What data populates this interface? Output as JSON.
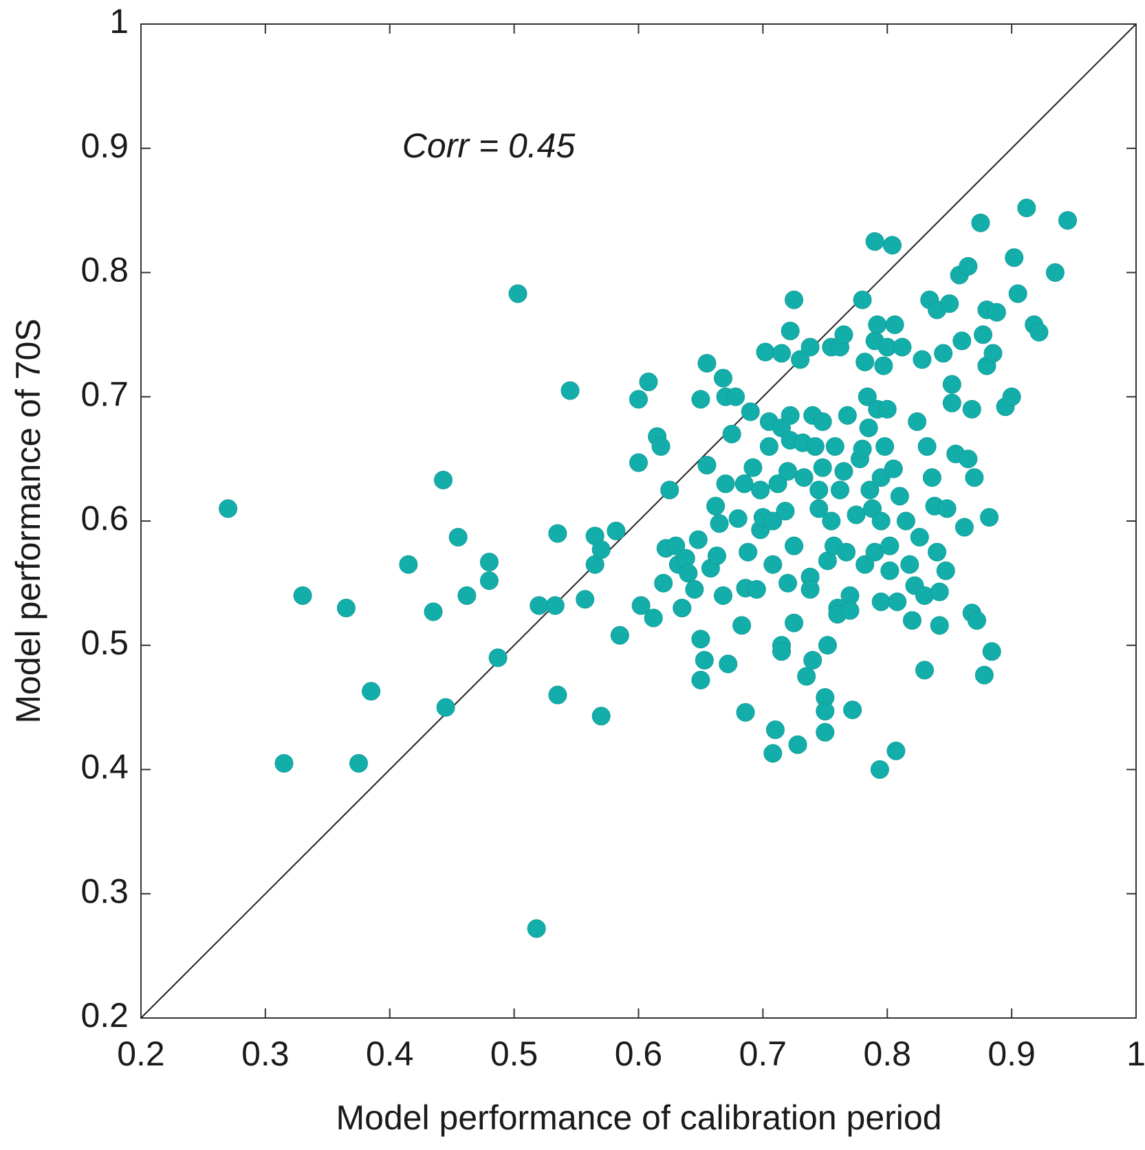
{
  "chart_data": {
    "type": "scatter",
    "xlabel": "Model performance of calibration period",
    "ylabel": "Model performance of 70S",
    "annotation": "Corr = 0.45",
    "color": "#14aeaa",
    "xlim": [
      0.2,
      1
    ],
    "ylim": [
      0.2,
      1
    ],
    "xticks": [
      0.2,
      0.3,
      0.4,
      0.5,
      0.6,
      0.7,
      0.8,
      0.9,
      1
    ],
    "yticks": [
      0.2,
      0.3,
      0.4,
      0.5,
      0.6,
      0.7,
      0.8,
      0.9,
      1
    ],
    "x": [
      0.27,
      0.315,
      0.33,
      0.365,
      0.375,
      0.385,
      0.415,
      0.435,
      0.443,
      0.445,
      0.455,
      0.462,
      0.48,
      0.48,
      0.487,
      0.503,
      0.518,
      0.52,
      0.533,
      0.535,
      0.535,
      0.545,
      0.557,
      0.565,
      0.565,
      0.57,
      0.57,
      0.582,
      0.585,
      0.6,
      0.6,
      0.602,
      0.608,
      0.612,
      0.615,
      0.618,
      0.62,
      0.622,
      0.625,
      0.63,
      0.632,
      0.635,
      0.638,
      0.64,
      0.645,
      0.648,
      0.65,
      0.65,
      0.65,
      0.653,
      0.655,
      0.655,
      0.658,
      0.662,
      0.663,
      0.665,
      0.668,
      0.668,
      0.67,
      0.67,
      0.672,
      0.675,
      0.678,
      0.68,
      0.683,
      0.685,
      0.686,
      0.686,
      0.688,
      0.69,
      0.692,
      0.695,
      0.698,
      0.698,
      0.7,
      0.702,
      0.705,
      0.705,
      0.708,
      0.708,
      0.708,
      0.71,
      0.712,
      0.715,
      0.715,
      0.715,
      0.715,
      0.718,
      0.72,
      0.72,
      0.722,
      0.722,
      0.722,
      0.725,
      0.725,
      0.725,
      0.728,
      0.73,
      0.732,
      0.733,
      0.735,
      0.738,
      0.738,
      0.738,
      0.74,
      0.74,
      0.742,
      0.745,
      0.745,
      0.748,
      0.748,
      0.75,
      0.75,
      0.75,
      0.752,
      0.752,
      0.755,
      0.755,
      0.757,
      0.758,
      0.76,
      0.76,
      0.762,
      0.762,
      0.765,
      0.765,
      0.767,
      0.768,
      0.77,
      0.77,
      0.772,
      0.775,
      0.778,
      0.78,
      0.78,
      0.782,
      0.782,
      0.784,
      0.785,
      0.786,
      0.788,
      0.79,
      0.79,
      0.79,
      0.792,
      0.792,
      0.794,
      0.795,
      0.795,
      0.795,
      0.797,
      0.798,
      0.8,
      0.8,
      0.802,
      0.802,
      0.804,
      0.805,
      0.806,
      0.807,
      0.808,
      0.81,
      0.812,
      0.815,
      0.818,
      0.82,
      0.822,
      0.824,
      0.826,
      0.828,
      0.83,
      0.83,
      0.832,
      0.834,
      0.836,
      0.838,
      0.84,
      0.84,
      0.842,
      0.842,
      0.845,
      0.847,
      0.848,
      0.85,
      0.852,
      0.852,
      0.855,
      0.858,
      0.86,
      0.862,
      0.865,
      0.865,
      0.868,
      0.868,
      0.87,
      0.872,
      0.875,
      0.877,
      0.878,
      0.88,
      0.88,
      0.882,
      0.884,
      0.885,
      0.888,
      0.895,
      0.9,
      0.902,
      0.905,
      0.912,
      0.918,
      0.922,
      0.935,
      0.945
    ],
    "y": [
      0.61,
      0.405,
      0.54,
      0.53,
      0.405,
      0.463,
      0.565,
      0.527,
      0.633,
      0.45,
      0.587,
      0.54,
      0.567,
      0.552,
      0.49,
      0.783,
      0.272,
      0.532,
      0.532,
      0.59,
      0.46,
      0.705,
      0.537,
      0.588,
      0.565,
      0.577,
      0.443,
      0.592,
      0.508,
      0.698,
      0.647,
      0.532,
      0.712,
      0.522,
      0.668,
      0.66,
      0.55,
      0.578,
      0.625,
      0.58,
      0.565,
      0.53,
      0.57,
      0.558,
      0.545,
      0.585,
      0.698,
      0.505,
      0.472,
      0.488,
      0.727,
      0.645,
      0.562,
      0.612,
      0.572,
      0.598,
      0.715,
      0.54,
      0.7,
      0.63,
      0.485,
      0.67,
      0.7,
      0.602,
      0.516,
      0.63,
      0.546,
      0.446,
      0.575,
      0.688,
      0.643,
      0.545,
      0.625,
      0.593,
      0.603,
      0.736,
      0.68,
      0.66,
      0.6,
      0.565,
      0.413,
      0.432,
      0.63,
      0.735,
      0.675,
      0.5,
      0.495,
      0.608,
      0.55,
      0.64,
      0.753,
      0.665,
      0.685,
      0.58,
      0.518,
      0.778,
      0.42,
      0.73,
      0.663,
      0.635,
      0.475,
      0.74,
      0.555,
      0.545,
      0.685,
      0.488,
      0.66,
      0.61,
      0.625,
      0.68,
      0.643,
      0.458,
      0.447,
      0.43,
      0.5,
      0.568,
      0.74,
      0.6,
      0.58,
      0.66,
      0.53,
      0.525,
      0.74,
      0.625,
      0.75,
      0.64,
      0.575,
      0.685,
      0.54,
      0.528,
      0.448,
      0.605,
      0.65,
      0.658,
      0.778,
      0.565,
      0.728,
      0.7,
      0.675,
      0.625,
      0.61,
      0.825,
      0.745,
      0.575,
      0.69,
      0.758,
      0.4,
      0.535,
      0.6,
      0.635,
      0.725,
      0.66,
      0.74,
      0.69,
      0.58,
      0.56,
      0.822,
      0.642,
      0.758,
      0.415,
      0.535,
      0.62,
      0.74,
      0.6,
      0.565,
      0.52,
      0.548,
      0.68,
      0.587,
      0.73,
      0.48,
      0.54,
      0.66,
      0.778,
      0.635,
      0.612,
      0.77,
      0.575,
      0.516,
      0.543,
      0.735,
      0.56,
      0.61,
      0.775,
      0.71,
      0.695,
      0.654,
      0.798,
      0.745,
      0.595,
      0.805,
      0.65,
      0.69,
      0.526,
      0.635,
      0.52,
      0.84,
      0.75,
      0.476,
      0.725,
      0.77,
      0.603,
      0.495,
      0.735,
      0.768,
      0.692,
      0.7,
      0.812,
      0.783,
      0.852,
      0.758,
      0.752,
      0.8,
      0.842
    ]
  }
}
